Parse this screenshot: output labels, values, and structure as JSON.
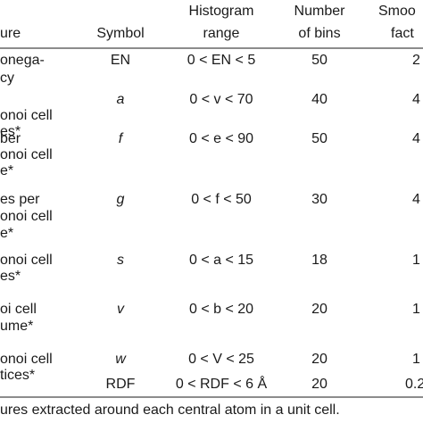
{
  "table": {
    "header": [
      [
        "ure"
      ],
      [
        "Symbol"
      ],
      [
        "Histogram",
        "range"
      ],
      [
        "Number",
        "of bins"
      ],
      [
        "Smoo",
        "fact"
      ]
    ],
    "rows": [
      {
        "feature": [
          "onega-",
          "cy"
        ],
        "symbol": "EN",
        "range": "0 < EN < 5",
        "bins": "50",
        "factor": "2"
      },
      {
        "feature": [
          "onoi cell",
          "es*"
        ],
        "symbol": "a",
        "range": "0 < v < 70",
        "bins": "40",
        "factor": "4"
      },
      {
        "feature": [
          "ber",
          "onoi cell",
          "e*"
        ],
        "symbol": "f",
        "range": "0 < e < 90",
        "bins": "50",
        "factor": "4"
      },
      {
        "feature": [
          "es per",
          "onoi cell",
          "e*"
        ],
        "symbol": "g",
        "range": "0 < f < 50",
        "bins": "30",
        "factor": "4"
      },
      {
        "feature": [
          "onoi cell",
          "es*"
        ],
        "symbol": "s",
        "range": "0 < a < 15",
        "bins": "18",
        "factor": "1"
      },
      {
        "feature": [
          "oi cell",
          "ume*"
        ],
        "symbol": "v",
        "range": "0 < b < 20",
        "bins": "20",
        "factor": "1"
      },
      {
        "feature": [
          "onoi cell",
          "tices*"
        ],
        "symbol": "w",
        "range": "0 < V < 25",
        "bins": "20",
        "factor": "1"
      },
      {
        "feature": [],
        "symbol": "RDF",
        "range": "0 < RDF < 6 Å",
        "bins": "20",
        "factor": "0.2"
      }
    ],
    "footnote": "ures extracted around each central atom in a unit cell."
  }
}
